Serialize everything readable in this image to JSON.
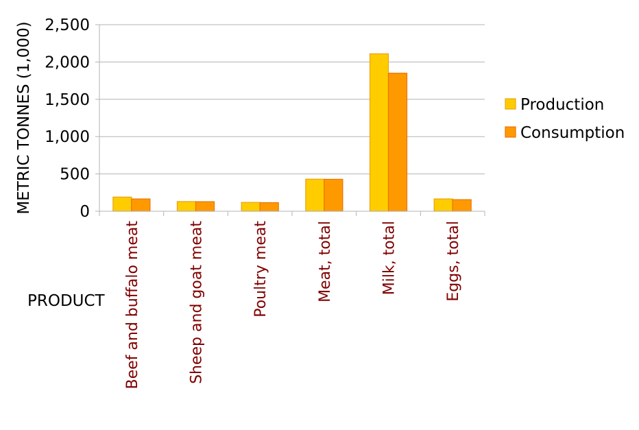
{
  "colors": {
    "production_fill": "#FFCC00",
    "production_stroke": "#E8A317",
    "consumption_fill": "#FF9900",
    "consumption_stroke": "#E87400",
    "grid": "#B3B3B3",
    "category_text": "#800000"
  },
  "chart_data": {
    "type": "bar",
    "title": "",
    "xlabel": "PRODUCT",
    "ylabel": "METRIC TONNES (1,000)",
    "categories": [
      "Beef and buffalo meat",
      "Sheep and goat meat",
      "Poultry meat",
      "Meat,  total",
      "Milk,  total",
      "Eggs,  total"
    ],
    "series": [
      {
        "name": "Production",
        "values": [
          190,
          130,
          118,
          430,
          2110,
          165
        ]
      },
      {
        "name": "Consumption",
        "values": [
          165,
          128,
          115,
          428,
          1850,
          155
        ]
      }
    ],
    "ylim": [
      0,
      2500
    ],
    "yticks": [
      0,
      500,
      1000,
      1500,
      2000,
      2500
    ],
    "ytick_labels": [
      "0",
      "500",
      "1,000",
      "1,500",
      "2,000",
      "2,500"
    ],
    "grid": true,
    "legend_position": "right"
  }
}
